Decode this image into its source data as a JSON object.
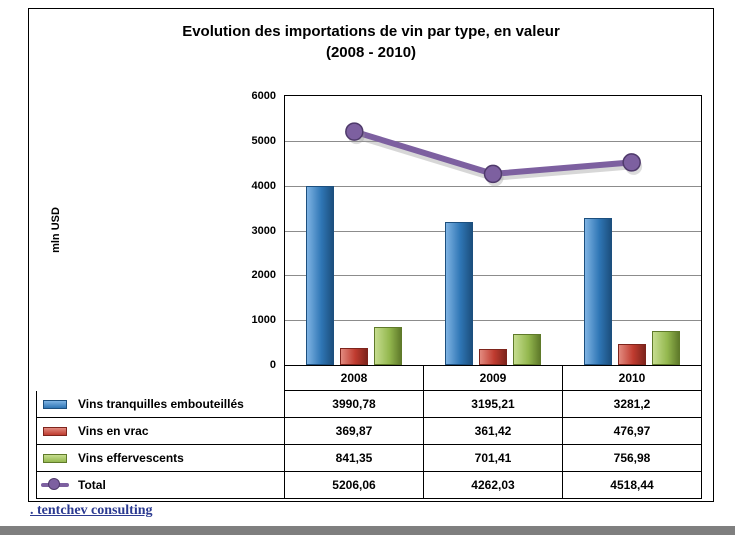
{
  "title": {
    "line1": "Evolution des importations de vin par type, en valeur",
    "line2": "(2008 - 2010)"
  },
  "y_axis": {
    "label": "mln USD",
    "ticks": [
      "0",
      "1000",
      "2000",
      "3000",
      "4000",
      "5000",
      "6000"
    ]
  },
  "chart_data": {
    "type": "combo",
    "categories": [
      "2008",
      "2009",
      "2010"
    ],
    "ylim": [
      0,
      6000
    ],
    "ylabel": "mln USD",
    "grid": true,
    "legend_position": "table-left",
    "series": [
      {
        "name": "Vins tranquilles embouteillés",
        "type": "bar",
        "color": "#2f76b5",
        "light": "#7eb3e3",
        "dark": "#1c4f7e",
        "values": [
          3990.78,
          3195.21,
          3281.2
        ]
      },
      {
        "name": "Vins en vrac",
        "type": "bar",
        "color": "#bf3b2f",
        "light": "#e28a7f",
        "dark": "#7e241c",
        "values": [
          369.87,
          361.42,
          476.97
        ]
      },
      {
        "name": "Vins effervescents",
        "type": "bar",
        "color": "#94b84f",
        "light": "#c6dd8f",
        "dark": "#5f7a2a",
        "values": [
          841.35,
          701.41,
          756.98
        ]
      },
      {
        "name": "Total",
        "type": "line",
        "color": "#7d60a0",
        "light": "#a98fc7",
        "dark": "#4f3a6b",
        "values": [
          5206.06,
          4262.03,
          4518.44
        ]
      }
    ]
  },
  "table": {
    "header": [
      "2008",
      "2009",
      "2010"
    ],
    "rows": [
      {
        "label": "Vins tranquilles embouteillés",
        "values": [
          "3990,78",
          "3195,21",
          "3281,2"
        ]
      },
      {
        "label": "Vins en vrac",
        "values": [
          "369,87",
          "361,42",
          "476,97"
        ]
      },
      {
        "label": "Vins effervescents",
        "values": [
          "841,35",
          "701,41",
          "756,98"
        ]
      },
      {
        "label": "Total",
        "values": [
          "5206,06",
          "4262,03",
          "4518,44"
        ]
      }
    ]
  },
  "footer": {
    "link_text": ". tentchev consulting",
    "link_color": "#2b3a91"
  }
}
